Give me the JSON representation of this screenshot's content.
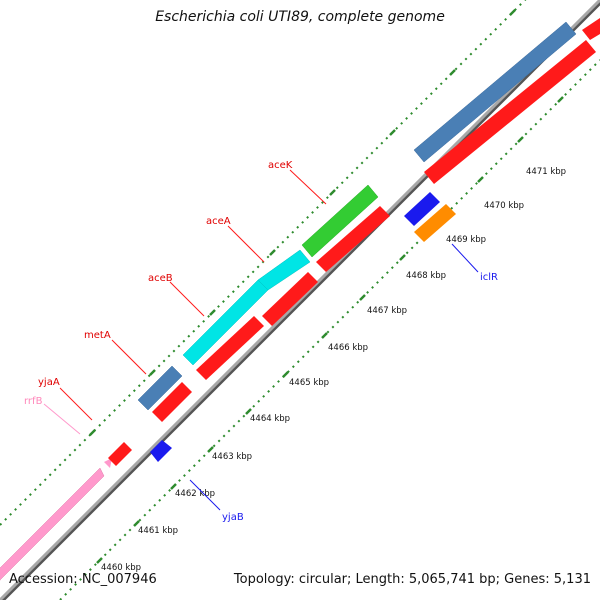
{
  "title": "Escherichia coli UTI89, complete genome",
  "footer": {
    "accession": "Accession: NC_007946",
    "topology": "Topology: circular; Length: 5,065,741 bp; Genes: 5,131"
  },
  "colors": {
    "backbone": "#9a9a9a",
    "backbone_dark": "#555555",
    "tick": "#2e8b2e",
    "cds_forward": "#ff1a1a",
    "cds_reverse": "#1a1aee",
    "gene_cog_a": "#4a7fb5",
    "gene_cog_b": "#00e5e5",
    "gene_cog_c": "#33cc33",
    "gene_cog_d": "#ff8c00",
    "rRNA": "#ff99cc"
  },
  "scale_labels": [
    "4460 kbp",
    "4461 kbp",
    "4462 kbp",
    "4463 kbp",
    "4464 kbp",
    "4465 kbp",
    "4466 kbp",
    "4467 kbp",
    "4468 kbp",
    "4469 kbp",
    "4470 kbp",
    "4471 kbp"
  ],
  "gene_labels": {
    "yjaA": "yjaA",
    "rrfB": "rrfB",
    "metA": "metA",
    "aceB": "aceB",
    "aceA": "aceA",
    "aceK": "aceK",
    "iclR": "iclR",
    "yjaB": "yjaB"
  }
}
